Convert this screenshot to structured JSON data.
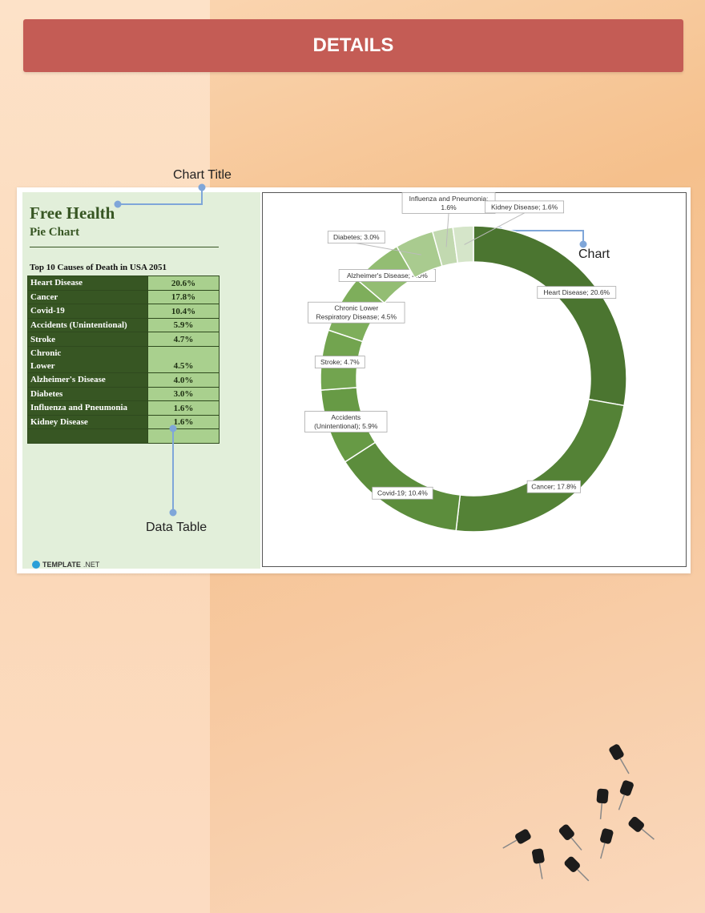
{
  "header": {
    "title": "DETAILS"
  },
  "annotations": {
    "chart_title": "Chart Title",
    "chart": "Chart",
    "data_table": "Data Table"
  },
  "brand": {
    "name": "TEMPLATE",
    "suffix": ".NET"
  },
  "sheet": {
    "title": "Free Health",
    "subtitle": "Pie Chart",
    "table": {
      "title": "Top 10 Causes of Death in USA 2051",
      "rows": [
        [
          "Heart Disease",
          "20.6%"
        ],
        [
          "Cancer",
          "17.8%"
        ],
        [
          "Covid-19",
          "10.4%"
        ],
        [
          "Accidents (Unintentional)",
          "5.9%"
        ],
        [
          "Stroke",
          "4.7%"
        ],
        [
          "Chronic\nLower",
          "4.5%"
        ],
        [
          "Alzheimer's Disease",
          "4.0%"
        ],
        [
          "Diabetes",
          "3.0%"
        ],
        [
          "Influenza and Pneumonia",
          "1.6%"
        ],
        [
          "Kidney Disease",
          "1.6%"
        ]
      ]
    }
  },
  "chart_data": {
    "type": "pie",
    "donut": true,
    "categories": [
      "Heart Disease",
      "Cancer",
      "Covid-19",
      "Accidents (Unintentional)",
      "Stroke",
      "Chronic Lower Respiratory Disease",
      "Alzheimer's Disease",
      "Diabetes",
      "Influenza and Pneumonia",
      "Kidney Disease"
    ],
    "values": [
      20.6,
      17.8,
      10.4,
      5.9,
      4.7,
      4.5,
      4.0,
      3.0,
      1.6,
      1.6
    ],
    "value_labels": [
      "Heart Disease; 20.6%",
      "Cancer; 17.8%",
      "Covid-19; 10.4%",
      "Accidents (Unintentional); 5.9%",
      "Stroke; 4.7%",
      "Chronic Lower Respiratory Disease; 4.5%",
      "Alzheimer's Disease; 4.0%",
      "Diabetes; 3.0%",
      "Influenza and Pneumonia; 1.6%",
      "Kidney Disease; 1.6%"
    ],
    "colors": [
      "#4b7530",
      "#548236",
      "#5c8d3c",
      "#679a45",
      "#72a44f",
      "#7eae5b",
      "#93bd73",
      "#a9cb8f",
      "#c2d9b0",
      "#d5e5c9"
    ]
  }
}
